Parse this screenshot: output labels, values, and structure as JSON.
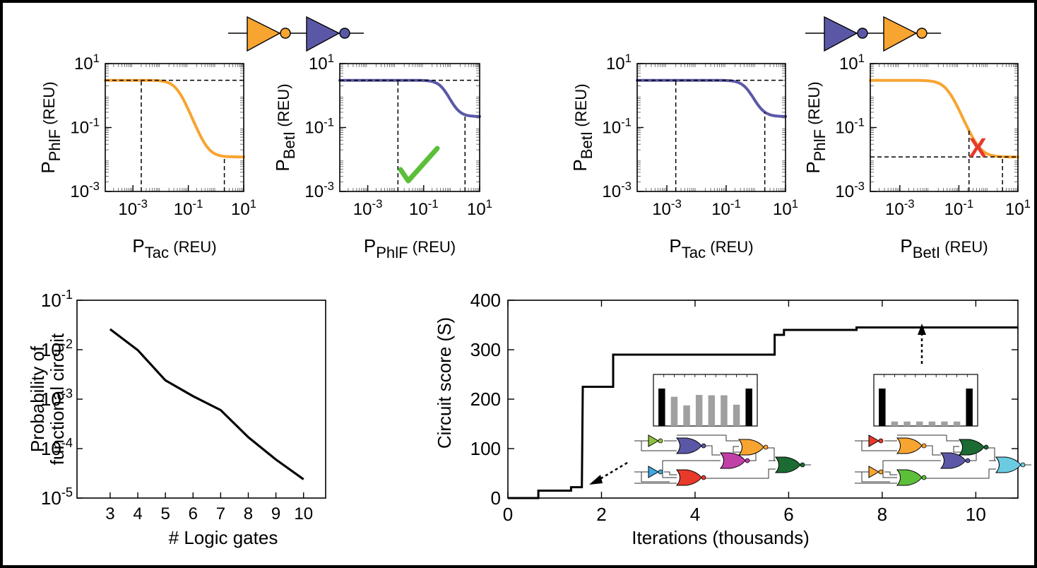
{
  "colors": {
    "phlf": "#F8A431",
    "betl": "#5A58A6",
    "check": "#5CBF3A",
    "cross": "#E8392A",
    "inset_bar_dark": "#000000",
    "inset_bar_light": "#A0A0A0"
  },
  "chart_data": [
    {
      "id": "transfer_tac_phlf_left",
      "type": "line",
      "xscale": "log",
      "yscale": "log",
      "xlim": [
        0.0001,
        10
      ],
      "ylim": [
        0.001,
        10
      ],
      "xlabel": "P",
      "xlabel_sub": "Tac",
      "xlabel_unit": " (REU)",
      "ylabel": "P",
      "ylabel_sub": "PhlF",
      "ylabel_unit": " (REU)",
      "xticks": [
        "10",
        "10",
        "10"
      ],
      "xtick_exp": [
        "-3",
        "-1",
        "1"
      ],
      "yticks": [
        "10",
        "10",
        "10"
      ],
      "ytick_exp": [
        "1",
        "-1",
        "-3"
      ],
      "curve": {
        "ymax": 3,
        "ymin": 0.012,
        "k": 0.04,
        "n": 2.2
      },
      "gate_color": "phlf",
      "dashed_x": [
        0.002,
        2
      ],
      "dashed_y": 3
    },
    {
      "id": "transfer_phlf_betl_left",
      "type": "line",
      "xscale": "log",
      "yscale": "log",
      "xlim": [
        0.0001,
        10
      ],
      "ylim": [
        0.001,
        10
      ],
      "xlabel": "P",
      "xlabel_sub": "PhlF",
      "xlabel_unit": " (REU)",
      "ylabel": "P",
      "ylabel_sub": "BetI",
      "ylabel_unit": " (REU)",
      "xticks": [
        "10",
        "10",
        "10"
      ],
      "xtick_exp": [
        "-3",
        "-1",
        "1"
      ],
      "yticks": [
        "10",
        "10",
        "10"
      ],
      "ytick_exp": [
        "1",
        "-1",
        "-3"
      ],
      "curve": {
        "ymax": 3,
        "ymin": 0.22,
        "k": 0.5,
        "n": 2.5
      },
      "gate_color": "betl",
      "dashed_x": [
        0.012,
        3
      ],
      "dashed_y": 3,
      "mark": "check"
    },
    {
      "id": "transfer_tac_betl_right",
      "type": "line",
      "xscale": "log",
      "yscale": "log",
      "xlim": [
        0.0001,
        10
      ],
      "ylim": [
        0.001,
        10
      ],
      "xlabel": "P",
      "xlabel_sub": "Tac",
      "xlabel_unit": " (REU)",
      "ylabel": "P",
      "ylabel_sub": "BetI",
      "ylabel_unit": " (REU)",
      "xticks": [
        "10",
        "10",
        "10"
      ],
      "xtick_exp": [
        "-3",
        "-1",
        "1"
      ],
      "yticks": [
        "10",
        "10",
        "10"
      ],
      "ytick_exp": [
        "1",
        "-1",
        "-3"
      ],
      "curve": {
        "ymax": 3,
        "ymin": 0.22,
        "k": 0.5,
        "n": 2.5
      },
      "gate_color": "betl",
      "dashed_x": [
        0.002,
        2
      ],
      "dashed_y": 3
    },
    {
      "id": "transfer_betl_phlf_right",
      "type": "line",
      "xscale": "log",
      "yscale": "log",
      "xlim": [
        0.0001,
        10
      ],
      "ylim": [
        0.001,
        10
      ],
      "xlabel": "P",
      "xlabel_sub": "BetI",
      "xlabel_unit": " (REU)",
      "ylabel": "P",
      "ylabel_sub": "PhlF",
      "ylabel_unit": " (REU)",
      "xticks": [
        "10",
        "10",
        "10"
      ],
      "xtick_exp": [
        "-3",
        "-1",
        "1"
      ],
      "yticks": [
        "10",
        "10",
        "10"
      ],
      "ytick_exp": [
        "1",
        "-1",
        "-3"
      ],
      "curve": {
        "ymax": 3,
        "ymin": 0.012,
        "k": 0.04,
        "n": 2.2
      },
      "gate_color": "phlf",
      "dashed_x": [
        0.22,
        3
      ],
      "dashed_y": 0.012,
      "mark": "cross",
      "mark_text": "X"
    },
    {
      "id": "probability_vs_gates",
      "type": "line",
      "yscale": "log",
      "x": [
        3,
        4,
        5,
        6,
        7,
        8,
        9,
        10
      ],
      "y": [
        0.026,
        0.0098,
        0.0024,
        0.00115,
        0.0006,
        0.00017,
        6e-05,
        2.4e-05
      ],
      "xlim": [
        1.8,
        10.8
      ],
      "ylim": [
        1e-05,
        0.1
      ],
      "xticks": [
        "3",
        "4",
        "5",
        "6",
        "7",
        "8",
        "9",
        "10"
      ],
      "yticks": [
        "10",
        "10",
        "10",
        "10",
        "10"
      ],
      "ytick_exp": [
        "-1",
        "-2",
        "-3",
        "-4",
        "-5"
      ],
      "xlabel": "# Logic gates",
      "ylabel": [
        "Probability of",
        "functional circuit"
      ]
    },
    {
      "id": "circuit_score",
      "type": "line",
      "step": [
        [
          0,
          0
        ],
        [
          0.65,
          0
        ],
        [
          0.65,
          15
        ],
        [
          1.35,
          15
        ],
        [
          1.35,
          22
        ],
        [
          1.58,
          22
        ],
        [
          1.6,
          225
        ],
        [
          2.25,
          225
        ],
        [
          2.25,
          290
        ],
        [
          5.7,
          290
        ],
        [
          5.7,
          330
        ],
        [
          5.9,
          330
        ],
        [
          5.9,
          340
        ],
        [
          7.45,
          340
        ],
        [
          7.45,
          345
        ],
        [
          10.9,
          345
        ]
      ],
      "xlim": [
        0,
        10.9
      ],
      "ylim": [
        0,
        400
      ],
      "xticks": [
        "0",
        "2",
        "4",
        "6",
        "8",
        "10"
      ],
      "yticks": [
        "0",
        "100",
        "200",
        "300",
        "400"
      ],
      "xlabel": "Iterations (thousands)",
      "ylabel": "Circuit score (S)"
    }
  ],
  "insets": [
    {
      "id": "inset_low_score",
      "bars": [
        1,
        0.78,
        0.55,
        0.83,
        0.82,
        0.82,
        0.57,
        1
      ]
    },
    {
      "id": "inset_high_score",
      "bars": [
        1,
        0.12,
        0.12,
        0.12,
        0.12,
        0.12,
        0.12,
        1
      ]
    }
  ]
}
